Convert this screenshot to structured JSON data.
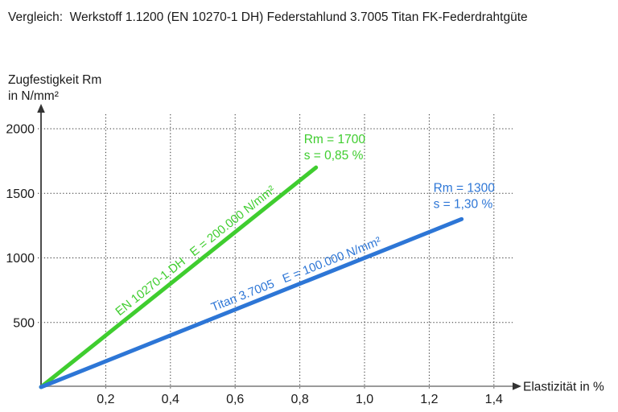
{
  "title": "Vergleich:  Werkstoff 1.1200 (EN 10270-1 DH) Federstahlund 3.7005 Titan FK-Federdrahtgüte",
  "colors": {
    "steel_green": "#3fcd2f",
    "titan_blue": "#2d76d6",
    "x_axis_gray": "#9a9a9a",
    "y_axis_dark": "#4d4d4d",
    "grid_dark": "#333333",
    "text_dark": "#1a1a1a"
  },
  "chart_data": {
    "type": "line",
    "title": "Vergleich: Werkstoff 1.1200 (EN 10270-1 DH) Federstahlund 3.7005 Titan FK-Federdrahtgüte",
    "xlabel": "Elastizität in %",
    "ylabel": "Zugfestigkeit Rm in N/mm²",
    "ylabel_lines": [
      "Zugfestigkeit Rm",
      "in N/mm²"
    ],
    "xlim": [
      0,
      1.45
    ],
    "ylim": [
      0,
      2100
    ],
    "grid": true,
    "legend_position": "none",
    "x_ticks": {
      "values": [
        0.2,
        0.4,
        0.6,
        0.8,
        1.0,
        1.2,
        1.4
      ],
      "labels": [
        "0,2",
        "0,4",
        "0,6",
        "0,8",
        "1,0",
        "1,2",
        "1,4"
      ]
    },
    "y_ticks": {
      "values": [
        500,
        1000,
        1500,
        2000
      ],
      "labels": [
        "500",
        "1000",
        "1500",
        "2000"
      ]
    },
    "series": [
      {
        "name": "Werkstoff 1.1200 (EN 10270-1 DH) Federstahl",
        "color": "#3fcd2f",
        "x": [
          0,
          0.85
        ],
        "y": [
          0,
          1700
        ],
        "E_modulus": "E = 200.000 N/mm²",
        "line_label": "EN 10270-1 DH   E = 200.000 N/mm²",
        "annotation": [
          "Rm = 1700",
          "s = 0,85 %"
        ]
      },
      {
        "name": "3.7005 Titan FK-Federdrahtgüte",
        "color": "#2d76d6",
        "x": [
          0,
          1.3
        ],
        "y": [
          0,
          1300
        ],
        "E_modulus": "E = 100.000 N/mm²",
        "line_label": "Titan 3.7005   E = 100.000 N/mm²",
        "annotation": [
          "Rm = 1300",
          "s = 1,30 %"
        ]
      }
    ]
  }
}
